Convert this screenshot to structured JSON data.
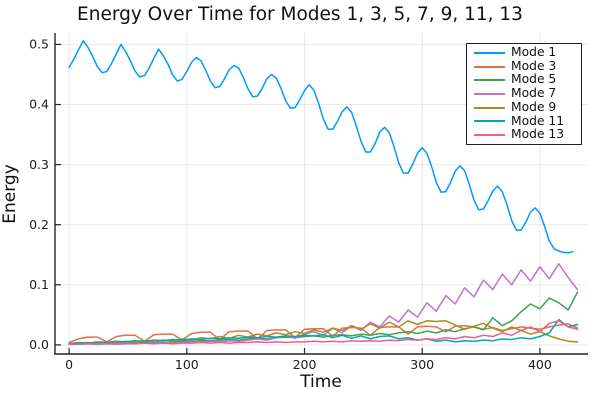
{
  "chart_data": {
    "type": "line",
    "title": "Energy Over Time for Modes 1, 3, 5, 7, 9, 11, 13",
    "xlabel": "Time",
    "ylabel": "Energy",
    "xlim": [
      -12,
      440
    ],
    "ylim": [
      -0.0135,
      0.519
    ],
    "grid": true,
    "legend_position": "top-right",
    "xtick_values": [
      0,
      100,
      200,
      300,
      400
    ],
    "xtick_labels": [
      "0",
      "100",
      "200",
      "300",
      "400"
    ],
    "ytick_values": [
      0.0,
      0.1,
      0.2,
      0.3,
      0.4,
      0.5
    ],
    "ytick_labels": [
      "0.0",
      "0.1",
      "0.2",
      "0.3",
      "0.4",
      "0.5"
    ],
    "colors": {
      "grid": "rgba(0,0,0,0.09)",
      "spine": "#262626",
      "tick_text": "#1c1c1c",
      "background": "#ffffff"
    },
    "series": [
      {
        "name": "Mode 1",
        "color": "#009AFA",
        "t0": 0,
        "dt": 4,
        "values": [
          0.462,
          0.475,
          0.491,
          0.506,
          0.495,
          0.48,
          0.463,
          0.453,
          0.455,
          0.468,
          0.484,
          0.5,
          0.488,
          0.473,
          0.456,
          0.446,
          0.448,
          0.461,
          0.477,
          0.492,
          0.481,
          0.467,
          0.449,
          0.439,
          0.442,
          0.455,
          0.47,
          0.478,
          0.473,
          0.457,
          0.439,
          0.428,
          0.43,
          0.443,
          0.458,
          0.465,
          0.461,
          0.445,
          0.426,
          0.413,
          0.414,
          0.427,
          0.443,
          0.45,
          0.444,
          0.427,
          0.406,
          0.394,
          0.395,
          0.408,
          0.423,
          0.433,
          0.424,
          0.402,
          0.376,
          0.359,
          0.359,
          0.372,
          0.388,
          0.396,
          0.387,
          0.364,
          0.339,
          0.321,
          0.321,
          0.335,
          0.354,
          0.362,
          0.353,
          0.33,
          0.303,
          0.286,
          0.286,
          0.301,
          0.319,
          0.328,
          0.319,
          0.297,
          0.27,
          0.254,
          0.255,
          0.27,
          0.289,
          0.298,
          0.29,
          0.267,
          0.241,
          0.225,
          0.226,
          0.24,
          0.256,
          0.264,
          0.255,
          0.233,
          0.207,
          0.191,
          0.191,
          0.204,
          0.221,
          0.228,
          0.219,
          0.197,
          0.173,
          0.16,
          0.156,
          0.154,
          0.153,
          0.155
        ]
      },
      {
        "name": "Mode 3",
        "color": "#E36F47",
        "t0": 0,
        "dt": 8,
        "values": [
          0.004,
          0.01,
          0.013,
          0.013,
          0.005,
          0.014,
          0.016,
          0.016,
          0.006,
          0.017,
          0.018,
          0.018,
          0.008,
          0.019,
          0.021,
          0.021,
          0.009,
          0.022,
          0.023,
          0.023,
          0.01,
          0.024,
          0.025,
          0.025,
          0.012,
          0.026,
          0.027,
          0.027,
          0.014,
          0.028,
          0.029,
          0.028,
          0.016,
          0.029,
          0.03,
          0.03,
          0.018,
          0.03,
          0.031,
          0.03,
          0.022,
          0.031,
          0.032,
          0.03,
          0.026,
          0.029,
          0.024,
          0.027,
          0.03,
          0.028,
          0.026,
          0.03,
          0.033,
          0.035,
          0.028
        ]
      },
      {
        "name": "Mode 5",
        "color": "#3DA44E",
        "t0": 0,
        "dt": 8,
        "values": [
          0.001,
          0.002,
          0.002,
          0.003,
          0.002,
          0.003,
          0.004,
          0.003,
          0.004,
          0.005,
          0.004,
          0.005,
          0.006,
          0.006,
          0.007,
          0.007,
          0.008,
          0.009,
          0.008,
          0.01,
          0.011,
          0.01,
          0.012,
          0.013,
          0.012,
          0.014,
          0.015,
          0.013,
          0.016,
          0.017,
          0.015,
          0.018,
          0.016,
          0.019,
          0.017,
          0.02,
          0.022,
          0.019,
          0.023,
          0.02,
          0.025,
          0.022,
          0.027,
          0.03,
          0.025,
          0.045,
          0.032,
          0.04,
          0.055,
          0.068,
          0.06,
          0.078,
          0.07,
          0.058,
          0.088
        ]
      },
      {
        "name": "Mode 7",
        "color": "#C371D2",
        "t0": 0,
        "dt": 8,
        "values": [
          0.001,
          0.001,
          0.002,
          0.001,
          0.002,
          0.002,
          0.003,
          0.002,
          0.003,
          0.003,
          0.004,
          0.003,
          0.004,
          0.005,
          0.004,
          0.006,
          0.005,
          0.007,
          0.006,
          0.008,
          0.01,
          0.008,
          0.012,
          0.015,
          0.011,
          0.018,
          0.022,
          0.016,
          0.028,
          0.02,
          0.032,
          0.024,
          0.038,
          0.03,
          0.048,
          0.038,
          0.058,
          0.046,
          0.07,
          0.056,
          0.082,
          0.068,
          0.095,
          0.08,
          0.108,
          0.092,
          0.118,
          0.1,
          0.125,
          0.106,
          0.13,
          0.11,
          0.135,
          0.112,
          0.092
        ]
      },
      {
        "name": "Mode 9",
        "color": "#AC8D18",
        "t0": 0,
        "dt": 8,
        "values": [
          0.002,
          0.003,
          0.004,
          0.003,
          0.005,
          0.004,
          0.006,
          0.005,
          0.007,
          0.006,
          0.008,
          0.007,
          0.01,
          0.008,
          0.012,
          0.01,
          0.014,
          0.011,
          0.016,
          0.013,
          0.018,
          0.015,
          0.02,
          0.017,
          0.022,
          0.019,
          0.025,
          0.021,
          0.028,
          0.024,
          0.032,
          0.026,
          0.035,
          0.028,
          0.038,
          0.03,
          0.04,
          0.034,
          0.04,
          0.039,
          0.04,
          0.033,
          0.026,
          0.031,
          0.036,
          0.028,
          0.022,
          0.03,
          0.024,
          0.018,
          0.022,
          0.015,
          0.01,
          0.006,
          0.005
        ]
      },
      {
        "name": "Mode 11",
        "color": "#00AAAE",
        "t0": 0,
        "dt": 8,
        "values": [
          0.002,
          0.004,
          0.003,
          0.005,
          0.004,
          0.006,
          0.005,
          0.007,
          0.006,
          0.008,
          0.007,
          0.009,
          0.008,
          0.01,
          0.009,
          0.011,
          0.01,
          0.012,
          0.011,
          0.013,
          0.012,
          0.014,
          0.013,
          0.015,
          0.014,
          0.016,
          0.015,
          0.017,
          0.012,
          0.016,
          0.011,
          0.015,
          0.01,
          0.014,
          0.015,
          0.01,
          0.012,
          0.008,
          0.01,
          0.006,
          0.008,
          0.005,
          0.007,
          0.006,
          0.008,
          0.007,
          0.01,
          0.009,
          0.012,
          0.01,
          0.014,
          0.02,
          0.042,
          0.03,
          0.034
        ]
      },
      {
        "name": "Mode 13",
        "color": "#ED5D92",
        "t0": 0,
        "dt": 8,
        "values": [
          0.001,
          0.001,
          0.002,
          0.001,
          0.002,
          0.001,
          0.002,
          0.002,
          0.003,
          0.002,
          0.003,
          0.002,
          0.003,
          0.003,
          0.004,
          0.003,
          0.004,
          0.003,
          0.004,
          0.004,
          0.005,
          0.004,
          0.005,
          0.004,
          0.005,
          0.005,
          0.006,
          0.005,
          0.006,
          0.005,
          0.007,
          0.006,
          0.007,
          0.006,
          0.008,
          0.007,
          0.009,
          0.008,
          0.01,
          0.009,
          0.012,
          0.01,
          0.014,
          0.012,
          0.016,
          0.014,
          0.02,
          0.016,
          0.024,
          0.03,
          0.022,
          0.036,
          0.04,
          0.03,
          0.026
        ]
      }
    ]
  }
}
